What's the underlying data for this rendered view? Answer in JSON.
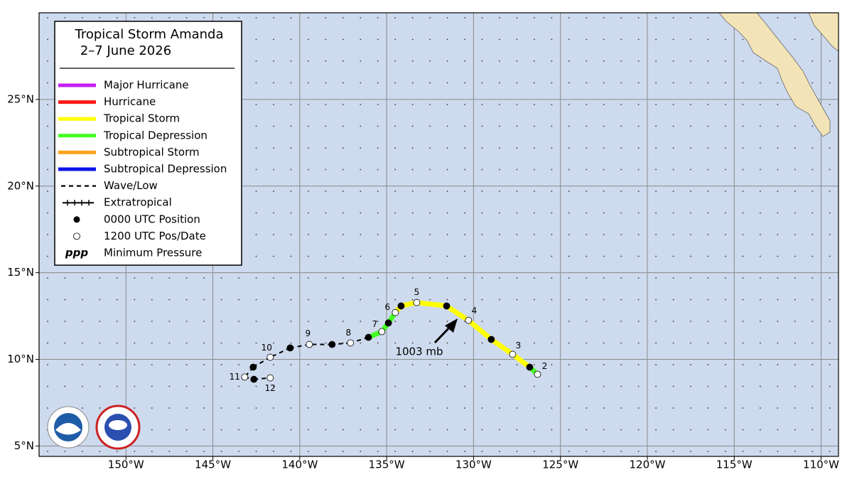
{
  "title": "Tropical Storm Amanda",
  "subtitle": "2–7 June 2026",
  "map": {
    "lonlim": [
      -155,
      -109
    ],
    "latlim": [
      4.4,
      30
    ],
    "lonticks": [
      {
        "value": -150,
        "label": "150°W"
      },
      {
        "value": -145,
        "label": "145°W"
      },
      {
        "value": -140,
        "label": "140°W"
      },
      {
        "value": -135,
        "label": "135°W"
      },
      {
        "value": -130,
        "label": "130°W"
      },
      {
        "value": -125,
        "label": "125°W"
      },
      {
        "value": -120,
        "label": "120°W"
      },
      {
        "value": -115,
        "label": "115°W"
      },
      {
        "value": -110,
        "label": "110°W"
      }
    ],
    "latticks": [
      {
        "value": 5,
        "label": "5°N"
      },
      {
        "value": 10,
        "label": "10°N"
      },
      {
        "value": 15,
        "label": "15°N"
      },
      {
        "value": 20,
        "label": "20°N"
      },
      {
        "value": 25,
        "label": "25°N"
      }
    ]
  },
  "legend": [
    {
      "label": "Major Hurricane",
      "color": "#c61ef0",
      "symbol": "line"
    },
    {
      "label": "Hurricane",
      "color": "#ff1a1a",
      "symbol": "line"
    },
    {
      "label": "Tropical Storm",
      "color": "#ffff00",
      "symbol": "line"
    },
    {
      "label": "Tropical Depression",
      "color": "#44ff22",
      "symbol": "line"
    },
    {
      "label": "Subtropical Storm",
      "color": "#ffa31a",
      "symbol": "line"
    },
    {
      "label": "Subtropical Depression",
      "color": "#0a14e6",
      "symbol": "line"
    },
    {
      "label": "Wave/Low",
      "color": "#000000",
      "symbol": "dashed"
    },
    {
      "label": "Extratropical",
      "color": "#000000",
      "symbol": "crossed"
    },
    {
      "label": "0000 UTC Position",
      "color": "#000000",
      "symbol": "filled-dot"
    },
    {
      "label": "1200 UTC Pos/Date",
      "color": "#ffffff",
      "symbol": "open-dot"
    },
    {
      "label": "Minimum Pressure",
      "symbol": "text",
      "symbol_text": "ppp"
    }
  ],
  "track": [
    {
      "lon": -126.32,
      "lat": 9.14,
      "time": "1200",
      "date": "2",
      "stage": "Tropical Depression"
    },
    {
      "lon": -126.77,
      "lat": 9.55,
      "time": "0000",
      "stage": "Tropical Storm"
    },
    {
      "lon": -127.75,
      "lat": 10.29,
      "time": "1200",
      "date": "3",
      "stage": "Tropical Storm"
    },
    {
      "lon": -128.98,
      "lat": 11.15,
      "time": "0000",
      "stage": "Tropical Storm"
    },
    {
      "lon": -130.29,
      "lat": 12.25,
      "time": "1200",
      "date": "4",
      "stage": "Tropical Storm"
    },
    {
      "lon": -131.55,
      "lat": 13.08,
      "time": "0000",
      "stage": "Tropical Storm"
    },
    {
      "lon": -133.27,
      "lat": 13.28,
      "time": "1200",
      "date": "5",
      "stage": "Tropical Storm"
    },
    {
      "lon": -134.17,
      "lat": 13.08,
      "time": "0000",
      "stage": "Tropical Storm"
    },
    {
      "lon": -134.5,
      "lat": 12.7,
      "time": "1200",
      "date": "6",
      "stage": "Tropical Depression"
    },
    {
      "lon": -134.9,
      "lat": 12.1,
      "time": "0000",
      "stage": "Tropical Depression"
    },
    {
      "lon": -135.28,
      "lat": 11.6,
      "time": "1200",
      "date": "7",
      "stage": "Tropical Depression"
    },
    {
      "lon": -136.05,
      "lat": 11.27,
      "time": "0000",
      "stage": "Wave/Low"
    },
    {
      "lon": -137.08,
      "lat": 10.95,
      "time": "1200",
      "date": "8",
      "stage": "Wave/Low"
    },
    {
      "lon": -138.14,
      "lat": 10.86,
      "time": "0000",
      "stage": "Wave/Low"
    },
    {
      "lon": -139.45,
      "lat": 10.86,
      "time": "1200",
      "date": "9",
      "stage": "Wave/Low"
    },
    {
      "lon": -140.55,
      "lat": 10.66,
      "time": "0000",
      "stage": "Wave/Low"
    },
    {
      "lon": -141.7,
      "lat": 10.12,
      "time": "1200",
      "date": "10",
      "stage": "Wave/Low"
    },
    {
      "lon": -142.68,
      "lat": 9.55,
      "time": "0000",
      "stage": "Wave/Low"
    },
    {
      "lon": -143.17,
      "lat": 8.98,
      "time": "1200",
      "date": "11",
      "stage": "Wave/Low"
    },
    {
      "lon": -142.64,
      "lat": 8.85,
      "time": "0000",
      "stage": "Wave/Low"
    },
    {
      "lon": -141.7,
      "lat": 8.93,
      "time": "1200",
      "date": "12",
      "stage": "Wave/Low"
    }
  ],
  "annotations": [
    {
      "text": "1003 mb"
    }
  ]
}
